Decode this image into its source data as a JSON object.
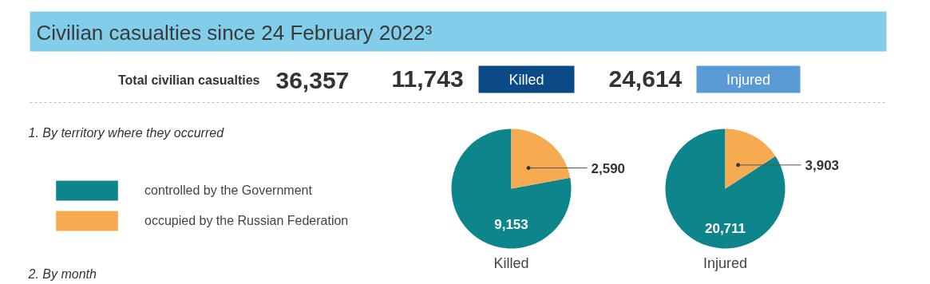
{
  "chart_data": [
    {
      "type": "other",
      "title": "Civilian casualties since 24 February 2022³",
      "annotations": [
        "Total civilian casualties",
        "36,357",
        "11,743",
        "Killed",
        "24,614",
        "Injured",
        "1. By territory where they occurred",
        "2. By month"
      ]
    },
    {
      "type": "pie",
      "title": "Killed",
      "categories": [
        "controlled by the Government",
        "occupied by the Russian Federation"
      ],
      "values": [
        9153,
        2590
      ],
      "value_labels": [
        "9,153",
        "2,590"
      ],
      "colors": [
        "#0e858a",
        "#f6aa52"
      ],
      "legend": "left"
    },
    {
      "type": "pie",
      "title": "Injured",
      "categories": [
        null,
        null
      ],
      "values": [
        20711,
        3903
      ],
      "value_labels": [
        "20,711",
        "3,903"
      ],
      "colors": [
        "#0e858a",
        "#f6aa52"
      ]
    }
  ]
}
